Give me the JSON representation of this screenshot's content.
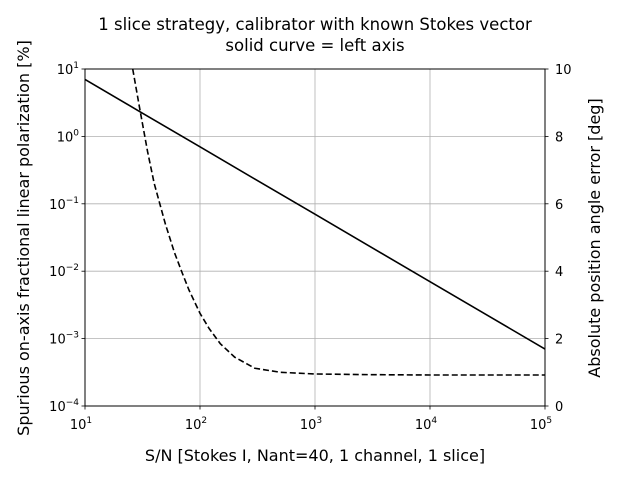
{
  "chart_data": {
    "type": "line",
    "title": "1 slice strategy, calibrator with known Stokes vector",
    "subtitle": "solid curve = left axis",
    "xlabel": "S/N [Stokes I, Nant=40, 1 channel, 1 slice]",
    "ylabel_left": "Spurious on-axis fractional linear polarization [%]",
    "ylabel_right": "Absolute position angle error [deg]",
    "xscale": "log",
    "yscale_left": "log",
    "yscale_right": "linear",
    "xlim": [
      10,
      100000
    ],
    "ylim_left": [
      0.0001,
      10
    ],
    "ylim_right": [
      0,
      10
    ],
    "x_ticks": [
      {
        "base": "10",
        "exp": "1",
        "value": 10
      },
      {
        "base": "10",
        "exp": "2",
        "value": 100
      },
      {
        "base": "10",
        "exp": "3",
        "value": 1000
      },
      {
        "base": "10",
        "exp": "4",
        "value": 10000
      },
      {
        "base": "10",
        "exp": "5",
        "value": 100000
      }
    ],
    "y_left_ticks": [
      {
        "base": "10",
        "exp": "1",
        "value": 10
      },
      {
        "base": "10",
        "exp": "0",
        "value": 1
      },
      {
        "base": "10",
        "exp": "−1",
        "value": 0.1
      },
      {
        "base": "10",
        "exp": "−2",
        "value": 0.01
      },
      {
        "base": "10",
        "exp": "−3",
        "value": 0.001
      },
      {
        "base": "10",
        "exp": "−4",
        "value": 0.0001
      }
    ],
    "y_right_ticks": [
      "10",
      "8",
      "6",
      "4",
      "2",
      "0"
    ],
    "grid": true,
    "series": [
      {
        "axis": "left",
        "style": "solid",
        "color": "#000000",
        "x": [
          10,
          30,
          100,
          300,
          1000,
          3000,
          10000,
          30000,
          100000
        ],
        "y": [
          7,
          2.33,
          0.7,
          0.233,
          0.07,
          0.0233,
          0.007,
          0.00233,
          0.0007
        ]
      },
      {
        "axis": "right",
        "style": "dashed",
        "color": "#000000",
        "x": [
          26,
          30,
          35,
          40,
          50,
          60,
          70,
          80,
          100,
          120,
          150,
          200,
          300,
          500,
          1000,
          3000,
          10000,
          100000
        ],
        "y": [
          10,
          8.8,
          7.55,
          6.6,
          5.4,
          4.55,
          3.95,
          3.45,
          2.75,
          2.3,
          1.85,
          1.45,
          1.12,
          1.0,
          0.95,
          0.93,
          0.92,
          0.92
        ]
      }
    ]
  }
}
